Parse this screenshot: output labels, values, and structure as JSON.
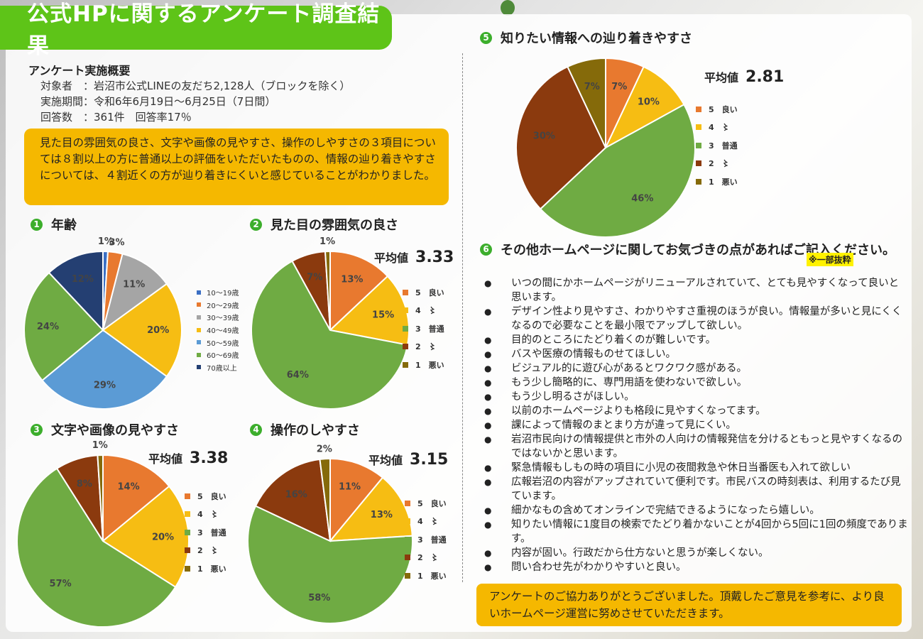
{
  "title": "公式HPに関するアンケート調査結果",
  "overview": {
    "heading": "アンケート実施概要",
    "lines": [
      "対象者　：岩沼市公式LINEの友だち2,128人（ブロックを除く）",
      "実施期間：令和6年6月19日～6月25日（7日間）",
      "回答数　：361件　回答率17％"
    ]
  },
  "summary": "見た目の雰囲気の良さ、文字や画像の見やすさ、操作のしやすさの３項目については８割以上の方に普通以上の評価をいただいたものの、情報の辿り着きやすさについては、４割近くの方が辿り着きにくいと感じていることがわかりました。",
  "likert_labels": [
    "5　良い",
    "4　〻",
    "3　普通",
    "2　〻",
    "1　悪い"
  ],
  "likert_colors": [
    "#e8792f",
    "#f6bd13",
    "#6fab43",
    "#8b3a0e",
    "#856a0a"
  ],
  "age_colors": [
    "#3b6fc4",
    "#e8792f",
    "#a5a5a5",
    "#f6bd13",
    "#5b9bd5",
    "#6fab43",
    "#243f72"
  ],
  "avg_label": "平均値",
  "comments_heading": "その他ホームページに関してお気づきの点があればご記入ください。",
  "note": "※一部抜粋",
  "comments": [
    "いつの間にかホームページがリニューアルされていて、とても見やすくなって良いと思います。",
    "デザイン性より見やすさ、わかりやすさ重視のほうが良い。情報量が多いと見にくくなるので必要なことを最小限でアップして欲しい。",
    "目的のところにたどり着くのが難しいです。",
    "バスや医療の情報ものせてほしい。",
    "ビジュアル的に遊び心があるとワクワク感がある。",
    "もう少し簡略的に、専門用語を使わないで欲しい。",
    "もう少し明るさがほしい。",
    "以前のホームページよりも格段に見やすくなってます。",
    "課によって情報のまとまり方が違って見にくい。",
    "岩沼市民向けの情報提供と市外の人向けの情報発信を分けるともっと見やすくなるのではないかと思います。",
    "緊急情報もしもの時の項目に小児の夜間救急や休日当番医も入れて欲しい",
    "広報岩沼の内容がアップされていて便利です。市民バスの時刻表は、利用するたび見ています。",
    "細かなもの含めてオンラインで完結できるようになったら嬉しい。",
    "知りたい情報に1度目の検索でたどり着かないことが4回から5回に1回の頻度であります。",
    "内容が固い。行政だから仕方ないと思うが楽しくない。",
    "問い合わせ先がわかりやすいと良い。"
  ],
  "closing": "アンケートのご協力ありがとうございました。頂戴したご意見を参考に、より良いホームページ運営に努めさせていただきます。",
  "chart_data": [
    {
      "id": "age",
      "num": "1",
      "type": "pie",
      "title": "年齢",
      "categories": [
        "10～19歳",
        "20～29歳",
        "30～39歳",
        "40～49歳",
        "50～59歳",
        "60～69歳",
        "70歳以上"
      ],
      "values": [
        1,
        3,
        11,
        20,
        29,
        24,
        12
      ],
      "labels": [
        "1%",
        "3%",
        "11%",
        "20%",
        "29%",
        "24%",
        "12%"
      ]
    },
    {
      "id": "appearance",
      "num": "2",
      "type": "pie",
      "title": "見た目の雰囲気の良さ",
      "average": "3.33",
      "categories": [
        "5　良い",
        "4　〻",
        "3　普通",
        "2　〻",
        "1　悪い"
      ],
      "values": [
        13,
        15,
        64,
        7,
        1
      ],
      "labels": [
        "13%",
        "15%",
        "64%",
        "7%",
        "1%"
      ]
    },
    {
      "id": "readability",
      "num": "3",
      "type": "pie",
      "title": "文字や画像の見やすさ",
      "average": "3.38",
      "categories": [
        "5　良い",
        "4　〻",
        "3　普通",
        "2　〻",
        "1　悪い"
      ],
      "values": [
        14,
        20,
        57,
        8,
        1
      ],
      "labels": [
        "14%",
        "20%",
        "57%",
        "8%",
        "1%"
      ]
    },
    {
      "id": "usability",
      "num": "4",
      "type": "pie",
      "title": "操作のしやすさ",
      "average": "3.15",
      "categories": [
        "5　良い",
        "4　〻",
        "3　普通",
        "2　〻",
        "1　悪い"
      ],
      "values": [
        11,
        13,
        58,
        16,
        2
      ],
      "labels": [
        "11%",
        "13%",
        "58%",
        "16%",
        "2%"
      ]
    },
    {
      "id": "findability",
      "num": "5",
      "type": "pie",
      "title": "知りたい情報への辿り着きやすさ",
      "average": "2.81",
      "categories": [
        "5　良い",
        "4　〻",
        "3　普通",
        "2　〻",
        "1　悪い"
      ],
      "values": [
        7,
        10,
        46,
        30,
        7
      ],
      "labels": [
        "7%",
        "10%",
        "46%",
        "30%",
        "7%"
      ]
    }
  ]
}
